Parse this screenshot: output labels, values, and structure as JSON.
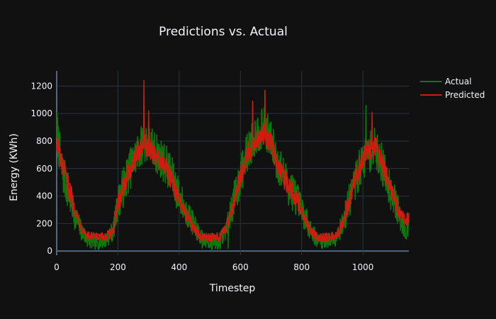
{
  "chart_data": {
    "type": "line",
    "title": "Predictions vs. Actual",
    "xlabel": "Timestep",
    "ylabel": "Energy (KWh)",
    "xlim": [
      0,
      1150
    ],
    "ylim": [
      -30,
      1310
    ],
    "xticks": [
      0,
      200,
      400,
      600,
      800,
      1000
    ],
    "yticks": [
      0,
      200,
      400,
      600,
      800,
      1000,
      1200
    ],
    "grid": true,
    "legend_position": "top-right",
    "series": [
      {
        "name": "Actual",
        "color": "#0b7a0b",
        "anchors": [
          [
            0,
            900
          ],
          [
            15,
            600
          ],
          [
            40,
            420
          ],
          [
            60,
            250
          ],
          [
            80,
            150
          ],
          [
            100,
            80
          ],
          [
            130,
            60
          ],
          [
            160,
            80
          ],
          [
            185,
            150
          ],
          [
            200,
            350
          ],
          [
            230,
            550
          ],
          [
            260,
            700
          ],
          [
            285,
            800
          ],
          [
            300,
            780
          ],
          [
            330,
            700
          ],
          [
            360,
            620
          ],
          [
            380,
            520
          ],
          [
            400,
            400
          ],
          [
            420,
            300
          ],
          [
            445,
            200
          ],
          [
            470,
            100
          ],
          [
            500,
            60
          ],
          [
            530,
            60
          ],
          [
            550,
            150
          ],
          [
            570,
            300
          ],
          [
            595,
            500
          ],
          [
            620,
            700
          ],
          [
            650,
            850
          ],
          [
            680,
            900
          ],
          [
            700,
            800
          ],
          [
            720,
            650
          ],
          [
            750,
            500
          ],
          [
            780,
            400
          ],
          [
            800,
            300
          ],
          [
            820,
            200
          ],
          [
            850,
            80
          ],
          [
            880,
            70
          ],
          [
            910,
            100
          ],
          [
            935,
            200
          ],
          [
            960,
            400
          ],
          [
            990,
            600
          ],
          [
            1010,
            700
          ],
          [
            1040,
            750
          ],
          [
            1060,
            650
          ],
          [
            1080,
            500
          ],
          [
            1100,
            400
          ],
          [
            1120,
            250
          ],
          [
            1140,
            150
          ],
          [
            1150,
            200
          ]
        ],
        "noise": 150,
        "spikes": [
          [
            285,
            1180
          ],
          [
            680,
            1160
          ],
          [
            1010,
            1060
          ],
          [
            640,
            1080
          ],
          [
            560,
            20
          ],
          [
            475,
            20
          ]
        ]
      },
      {
        "name": "Predicted",
        "color": "#d01c10",
        "anchors": [
          [
            0,
            800
          ],
          [
            15,
            650
          ],
          [
            40,
            450
          ],
          [
            60,
            300
          ],
          [
            80,
            180
          ],
          [
            100,
            110
          ],
          [
            130,
            100
          ],
          [
            160,
            100
          ],
          [
            185,
            150
          ],
          [
            200,
            350
          ],
          [
            230,
            550
          ],
          [
            260,
            700
          ],
          [
            285,
            780
          ],
          [
            300,
            750
          ],
          [
            330,
            680
          ],
          [
            360,
            600
          ],
          [
            380,
            480
          ],
          [
            400,
            380
          ],
          [
            420,
            280
          ],
          [
            445,
            170
          ],
          [
            470,
            100
          ],
          [
            500,
            100
          ],
          [
            530,
            100
          ],
          [
            550,
            150
          ],
          [
            570,
            300
          ],
          [
            595,
            500
          ],
          [
            620,
            700
          ],
          [
            650,
            800
          ],
          [
            680,
            850
          ],
          [
            700,
            780
          ],
          [
            720,
            640
          ],
          [
            750,
            500
          ],
          [
            780,
            400
          ],
          [
            800,
            300
          ],
          [
            820,
            180
          ],
          [
            850,
            100
          ],
          [
            880,
            100
          ],
          [
            910,
            110
          ],
          [
            935,
            200
          ],
          [
            960,
            420
          ],
          [
            990,
            620
          ],
          [
            1010,
            720
          ],
          [
            1040,
            760
          ],
          [
            1060,
            650
          ],
          [
            1080,
            520
          ],
          [
            1100,
            400
          ],
          [
            1120,
            270
          ],
          [
            1140,
            220
          ],
          [
            1150,
            240
          ]
        ],
        "noise": 80,
        "spikes": [
          [
            285,
            1240
          ],
          [
            680,
            1170
          ],
          [
            640,
            1090
          ],
          [
            1030,
            1010
          ],
          [
            300,
            1020
          ]
        ]
      }
    ]
  }
}
